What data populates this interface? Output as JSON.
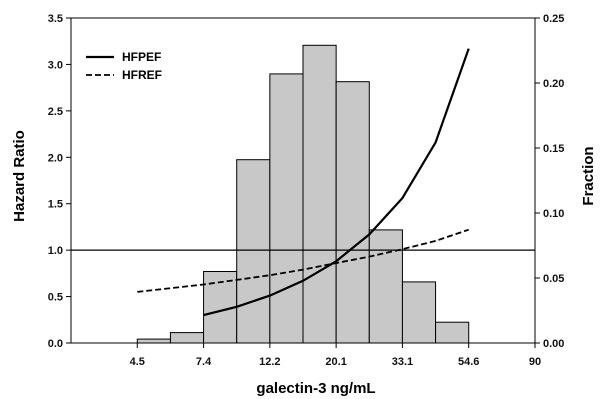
{
  "chart_data": {
    "type": "bar+line",
    "xlabel": "galectin-3 ng/mL",
    "ylabel_left": "Hazard Ratio",
    "ylabel_right": "Fraction",
    "x_ticks": [
      "4.5",
      "7.4",
      "12.2",
      "20.1",
      "33.1",
      "54.6",
      "90"
    ],
    "left_axis": {
      "min": 0,
      "max": 3.5,
      "ticks": [
        "0.0",
        "0.5",
        "1.0",
        "1.5",
        "2.0",
        "2.5",
        "3.0",
        "3.5"
      ]
    },
    "right_axis": {
      "min": 0,
      "max": 0.25,
      "ticks": [
        "0.00",
        "0.05",
        "0.10",
        "0.15",
        "0.20",
        "0.25"
      ]
    },
    "reference_line": {
      "hazard_ratio": 1.0
    },
    "histogram": {
      "bin_edges_ln": [
        1.5,
        1.75,
        2.0,
        2.25,
        2.5,
        2.75,
        3.0,
        3.25,
        3.5,
        3.75,
        4.0
      ],
      "fractions": [
        0.003,
        0.008,
        0.055,
        0.141,
        0.207,
        0.229,
        0.201,
        0.087,
        0.047,
        0.016
      ],
      "skip_bins": [
        8
      ]
    },
    "series": [
      {
        "name": "HFPEF",
        "style": "solid",
        "x_ln": [
          2.0,
          2.25,
          2.5,
          2.75,
          3.0,
          3.25,
          3.5,
          3.75,
          4.0
        ],
        "values": [
          0.3,
          0.39,
          0.51,
          0.67,
          0.88,
          1.17,
          1.56,
          2.16,
          3.17
        ]
      },
      {
        "name": "HFREF",
        "style": "dashed",
        "x_ln": [
          1.5,
          1.75,
          2.0,
          2.25,
          2.5,
          2.75,
          3.0,
          3.25,
          3.5,
          3.75,
          4.0
        ],
        "values": [
          0.55,
          0.59,
          0.63,
          0.68,
          0.73,
          0.79,
          0.86,
          0.93,
          1.01,
          1.1,
          1.22
        ]
      }
    ],
    "colors": {
      "bar_fill": "#c8c8c8",
      "bar_stroke": "#000000",
      "line": "#000000"
    },
    "legend": {
      "placement": "top-left"
    }
  }
}
